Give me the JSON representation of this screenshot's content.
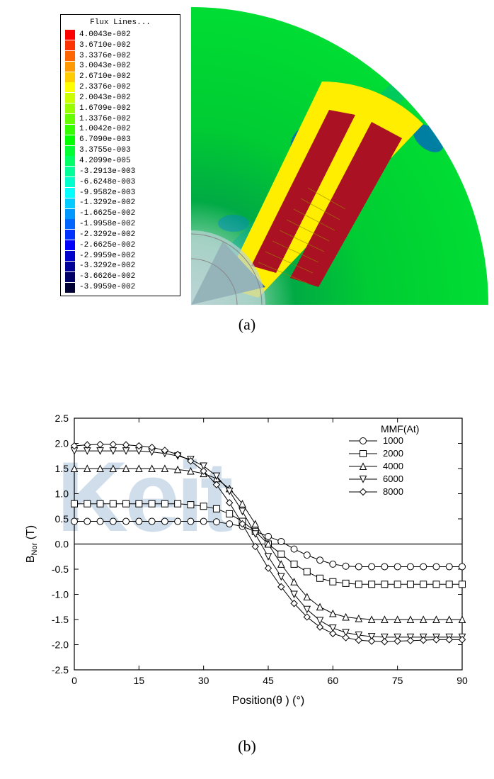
{
  "figureA": {
    "legend": {
      "title": "Flux Lines...",
      "entries": [
        {
          "color": "#ff0000",
          "value": "4.0043e-002"
        },
        {
          "color": "#ff3300",
          "value": "3.6710e-002"
        },
        {
          "color": "#ff6600",
          "value": "3.3376e-002"
        },
        {
          "color": "#ff9900",
          "value": "3.0043e-002"
        },
        {
          "color": "#ffcc00",
          "value": "2.6710e-002"
        },
        {
          "color": "#ffff00",
          "value": "2.3376e-002"
        },
        {
          "color": "#ccff00",
          "value": "2.0043e-002"
        },
        {
          "color": "#99ff00",
          "value": "1.6709e-002"
        },
        {
          "color": "#66ff00",
          "value": "1.3376e-002"
        },
        {
          "color": "#33ff00",
          "value": "1.0042e-002"
        },
        {
          "color": "#00ff00",
          "value": "6.7090e-003"
        },
        {
          "color": "#00ff33",
          "value": "3.3755e-003"
        },
        {
          "color": "#00ff66",
          "value": "4.2099e-005"
        },
        {
          "color": "#00ff99",
          "value": "-3.2913e-003"
        },
        {
          "color": "#00ffcc",
          "value": "-6.6248e-003"
        },
        {
          "color": "#00ffff",
          "value": "-9.9582e-003"
        },
        {
          "color": "#00ccff",
          "value": "-1.3292e-002"
        },
        {
          "color": "#0099ff",
          "value": "-1.6625e-002"
        },
        {
          "color": "#0066ff",
          "value": "-1.9958e-002"
        },
        {
          "color": "#0033ff",
          "value": "-2.3292e-002"
        },
        {
          "color": "#0000ff",
          "value": "-2.6625e-002"
        },
        {
          "color": "#0000cc",
          "value": "-2.9959e-002"
        },
        {
          "color": "#000099",
          "value": "-3.3292e-002"
        },
        {
          "color": "#000066",
          "value": "-3.6626e-002"
        },
        {
          "color": "#000033",
          "value": "-3.9959e-002"
        }
      ]
    },
    "caption": "(a)",
    "plot_colors": {
      "background": "#00cc33",
      "pole": "#ffee00",
      "winding": "#aa1122",
      "shaft": "#4a7a8a",
      "center_glow": "#bcd4d6"
    }
  },
  "figureB": {
    "caption": "(b)",
    "chart": {
      "type": "line",
      "xlabel": "Position(θ ) (°)",
      "ylabel": "B_Nor (T)",
      "xlim": [
        0,
        90
      ],
      "ylim": [
        -2.5,
        2.5
      ],
      "xtick_step": 15,
      "ytick_step": 0.5,
      "axis_color": "#000000",
      "background_color": "#ffffff",
      "tick_fontsize": 14,
      "label_fontsize": 16,
      "legend": {
        "title": "MMF(At)",
        "position": "top-right",
        "fontsize": 13,
        "entries": [
          {
            "label": "1000",
            "marker": "circle"
          },
          {
            "label": "2000",
            "marker": "square"
          },
          {
            "label": "4000",
            "marker": "triangle-up"
          },
          {
            "label": "6000",
            "marker": "triangle-down"
          },
          {
            "label": "8000",
            "marker": "diamond"
          }
        ]
      },
      "series_color": "#000000",
      "marker_size": 6,
      "line_width": 1,
      "series": [
        {
          "label": "1000",
          "marker": "circle",
          "y": [
            0.45,
            0.45,
            0.45,
            0.45,
            0.45,
            0.45,
            0.45,
            0.45,
            0.45,
            0.45,
            0.45,
            0.44,
            0.4,
            0.35,
            0.25,
            0.15,
            0.05,
            -0.1,
            -0.22,
            -0.32,
            -0.4,
            -0.44,
            -0.45,
            -0.45,
            -0.45,
            -0.45,
            -0.45,
            -0.45,
            -0.45,
            -0.45,
            -0.45
          ]
        },
        {
          "label": "2000",
          "marker": "square",
          "y": [
            0.8,
            0.8,
            0.8,
            0.8,
            0.8,
            0.8,
            0.8,
            0.8,
            0.8,
            0.78,
            0.75,
            0.7,
            0.6,
            0.45,
            0.25,
            0.0,
            -0.2,
            -0.4,
            -0.55,
            -0.68,
            -0.75,
            -0.78,
            -0.8,
            -0.8,
            -0.8,
            -0.8,
            -0.8,
            -0.8,
            -0.8,
            -0.8,
            -0.8
          ]
        },
        {
          "label": "4000",
          "marker": "triangle-up",
          "y": [
            1.5,
            1.5,
            1.5,
            1.5,
            1.5,
            1.5,
            1.5,
            1.5,
            1.48,
            1.45,
            1.4,
            1.3,
            1.1,
            0.8,
            0.4,
            0.0,
            -0.4,
            -0.75,
            -1.05,
            -1.25,
            -1.38,
            -1.45,
            -1.48,
            -1.5,
            -1.5,
            -1.5,
            -1.5,
            -1.5,
            -1.5,
            -1.5,
            -1.5
          ]
        },
        {
          "label": "6000",
          "marker": "triangle-down",
          "y": [
            1.85,
            1.85,
            1.85,
            1.85,
            1.85,
            1.85,
            1.83,
            1.8,
            1.75,
            1.68,
            1.55,
            1.35,
            1.05,
            0.65,
            0.2,
            -0.25,
            -0.65,
            -1.0,
            -1.3,
            -1.52,
            -1.67,
            -1.76,
            -1.81,
            -1.84,
            -1.85,
            -1.85,
            -1.85,
            -1.85,
            -1.85,
            -1.85,
            -1.85
          ]
        },
        {
          "label": "8000",
          "marker": "diamond",
          "y": [
            1.95,
            1.97,
            1.98,
            1.98,
            1.97,
            1.95,
            1.92,
            1.86,
            1.78,
            1.65,
            1.45,
            1.18,
            0.82,
            0.4,
            -0.05,
            -0.48,
            -0.85,
            -1.18,
            -1.45,
            -1.65,
            -1.78,
            -1.86,
            -1.91,
            -1.93,
            -1.94,
            -1.93,
            -1.92,
            -1.91,
            -1.9,
            -1.9,
            -1.9
          ]
        }
      ],
      "x_values": [
        0,
        3,
        6,
        9,
        12,
        15,
        18,
        21,
        24,
        27,
        30,
        33,
        36,
        39,
        42,
        45,
        48,
        51,
        54,
        57,
        60,
        63,
        66,
        69,
        72,
        75,
        78,
        81,
        84,
        87,
        90
      ]
    },
    "watermark_text": "Keit",
    "watermark_color": "#5a8cb8"
  }
}
